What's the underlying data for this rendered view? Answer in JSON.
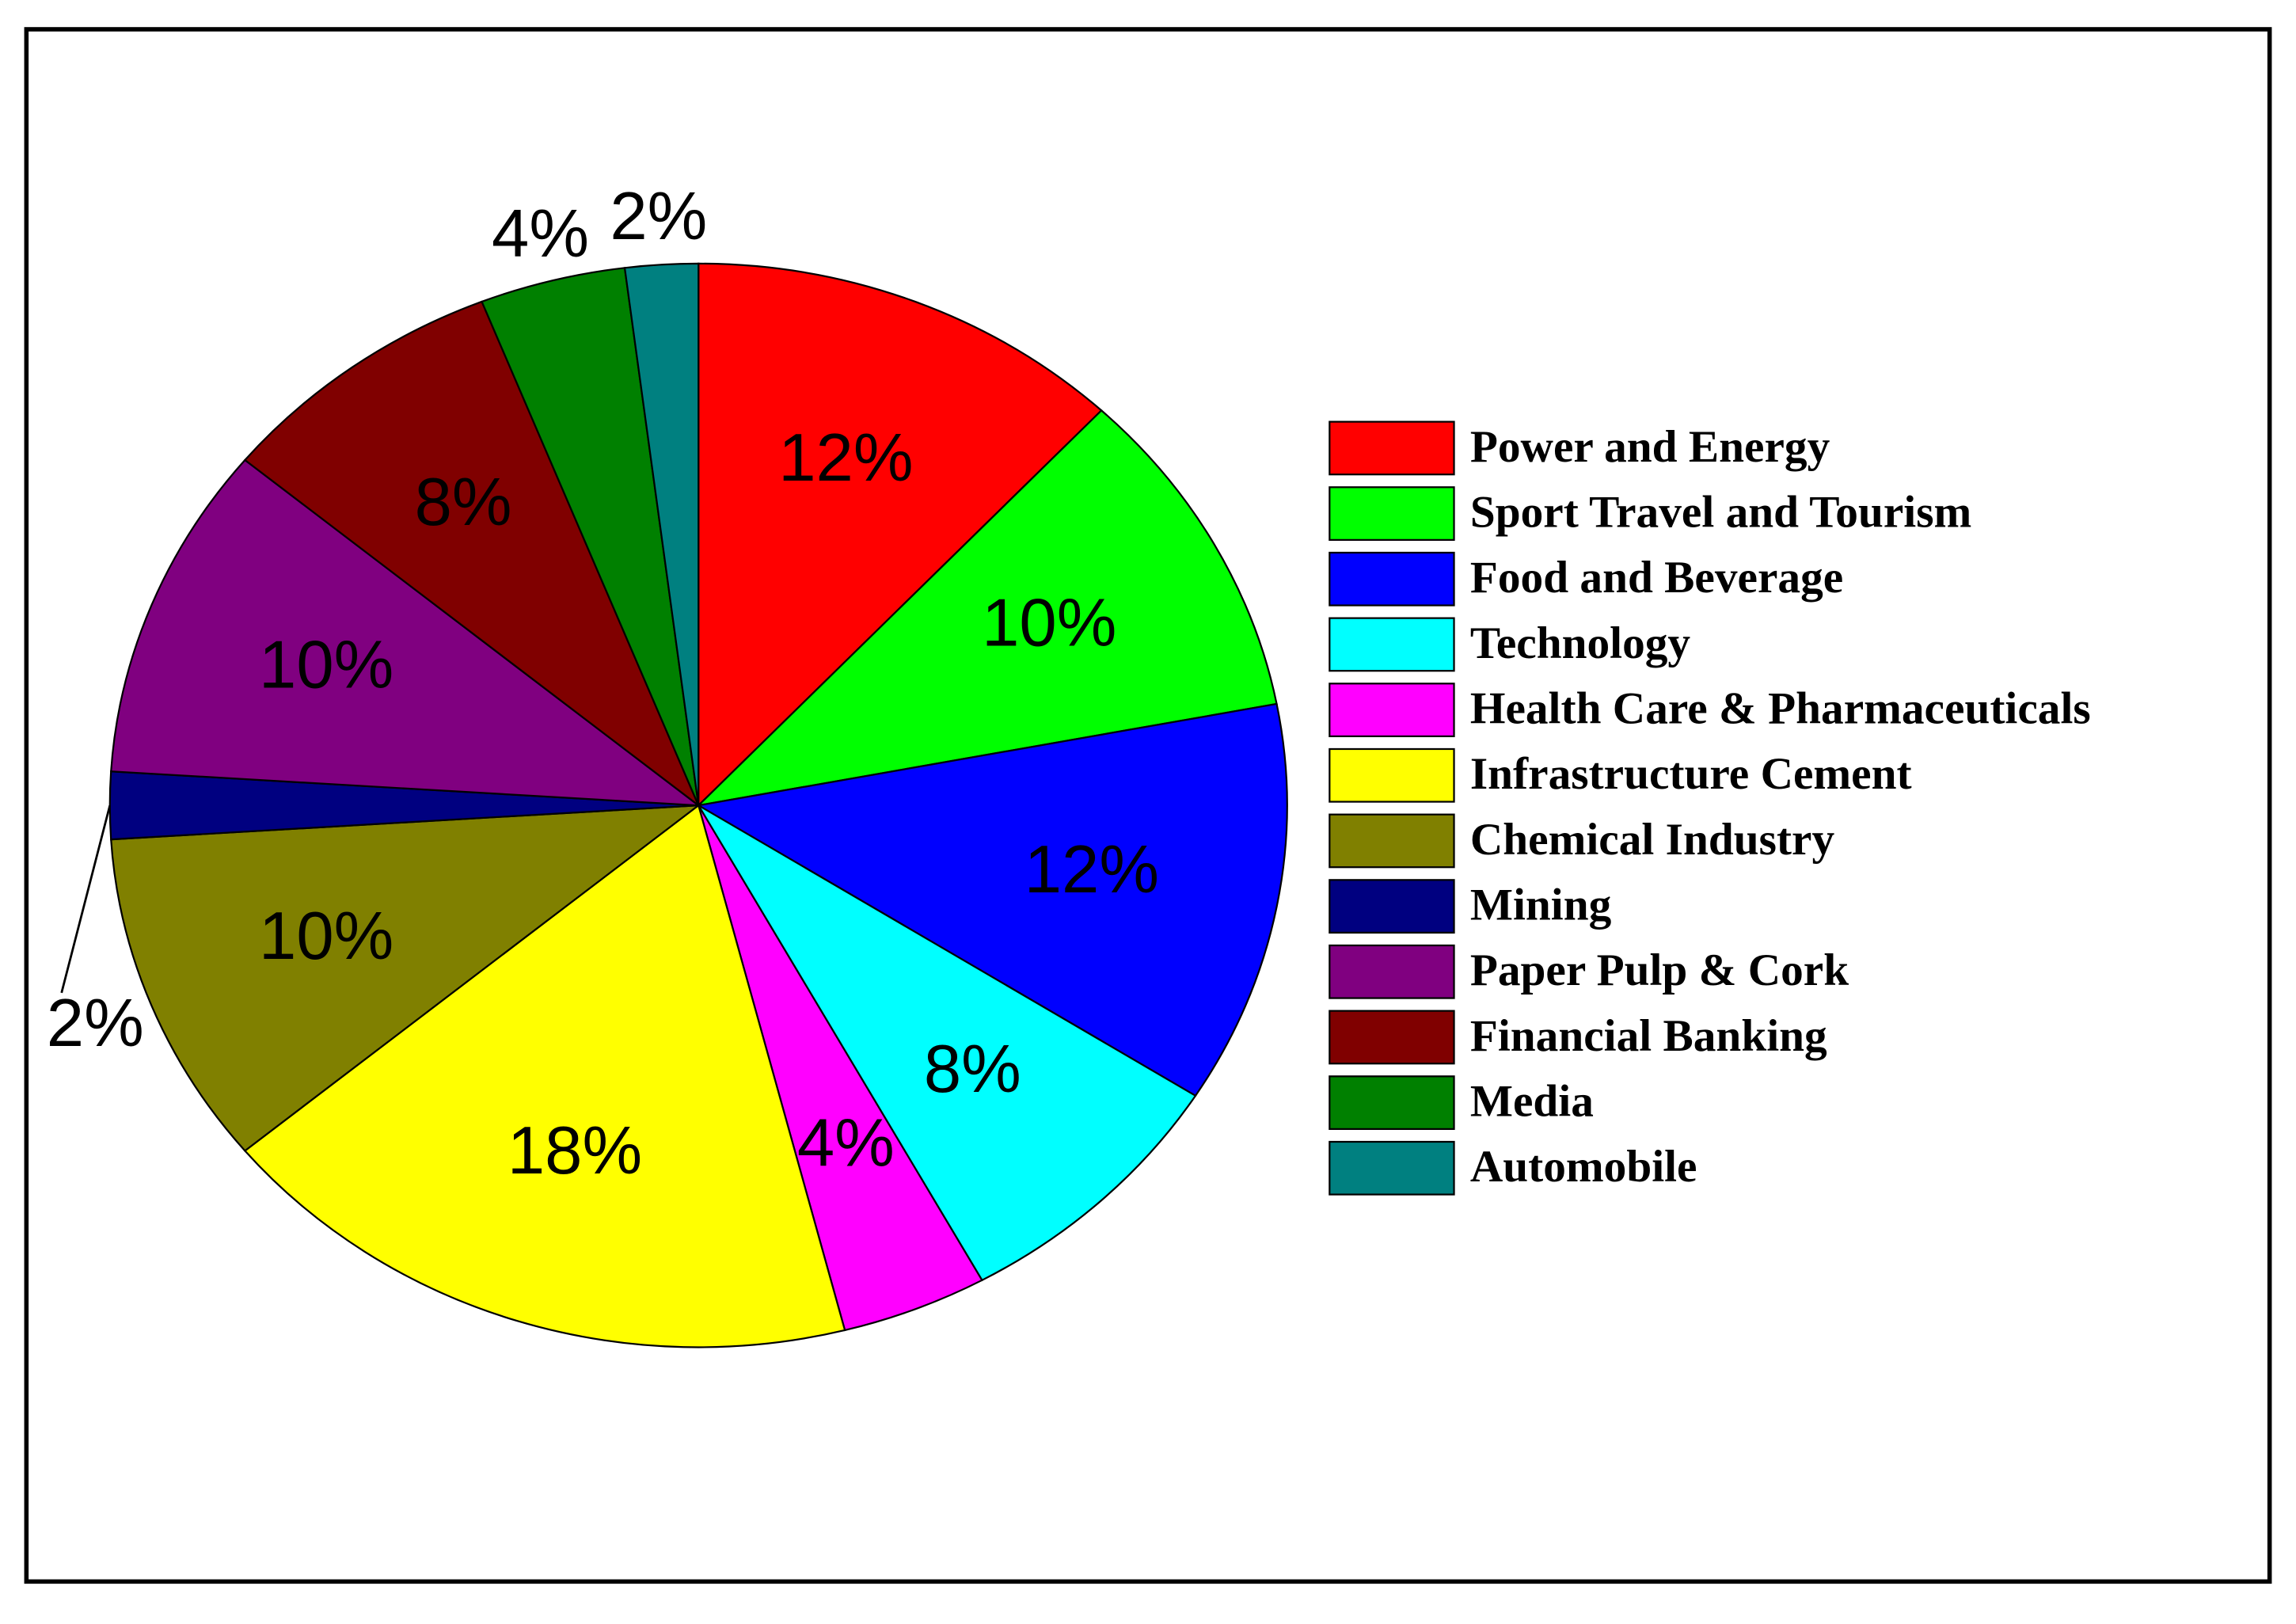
{
  "chart_data": {
    "type": "pie",
    "categories": [
      "Power and Energy",
      "Sport Travel and Tourism",
      "Food and Beverage",
      "Technology",
      "Health Care & Pharmaceuticals",
      "Infrastructure Cement",
      "Chemical Industry",
      "Mining",
      "Paper Pulp & Cork",
      "Financial Banking",
      "Media",
      "Automobile"
    ],
    "values": [
      12,
      10,
      12,
      8,
      4,
      18,
      10,
      2,
      10,
      8,
      4,
      2
    ],
    "value_labels": [
      "12%",
      "10%",
      "12%",
      "8%",
      "4%",
      "18%",
      "10%",
      "2%",
      "10%",
      "8%",
      "4%",
      "2%"
    ],
    "colors": [
      "#ff0000",
      "#00ff00",
      "#0000ff",
      "#00ffff",
      "#ff00ff",
      "#ffff00",
      "#808000",
      "#000080",
      "#800080",
      "#800000",
      "#008000",
      "#008080"
    ],
    "legend": "right"
  }
}
